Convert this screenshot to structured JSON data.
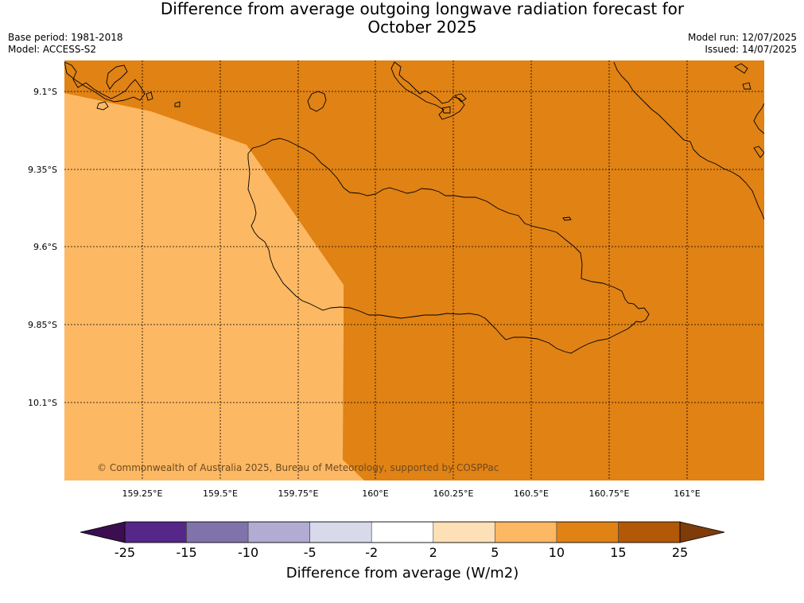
{
  "title_line1": "Difference from average outgoing longwave radiation forecast for",
  "title_line2": "October 2025",
  "base_period": "Base period: 1981-2018",
  "model": "Model: ACCESS-S2",
  "model_run": "Model run: 12/07/2025",
  "issued": "Issued: 14/07/2025",
  "copyright": "© Commonwealth of Australia 2025, Bureau of Meteorology, supported by COSPPac",
  "lat_labels": [
    "9.1°S",
    "9.35°S",
    "9.6°S",
    "9.85°S",
    "10.1°S"
  ],
  "lon_labels": [
    "159.25°E",
    "159.5°E",
    "159.75°E",
    "160°E",
    "160.25°E",
    "160.5°E",
    "160.75°E",
    "161°E"
  ],
  "colorbar": {
    "title": "Difference from average (W/m2)",
    "ticks": [
      "-25",
      "-15",
      "-10",
      "-5",
      "-2",
      "2",
      "5",
      "10",
      "15",
      "25"
    ],
    "colors": [
      "#3b0f4f",
      "#542788",
      "#8073ac",
      "#b2abd2",
      "#d8daeb",
      "#ffffff",
      "#fee0b6",
      "#fdb863",
      "#e08214",
      "#b35806",
      "#7f3b08"
    ]
  },
  "fill_colors": {
    "band_5_10": "#fdb863",
    "band_10_15": "#e08214"
  }
}
